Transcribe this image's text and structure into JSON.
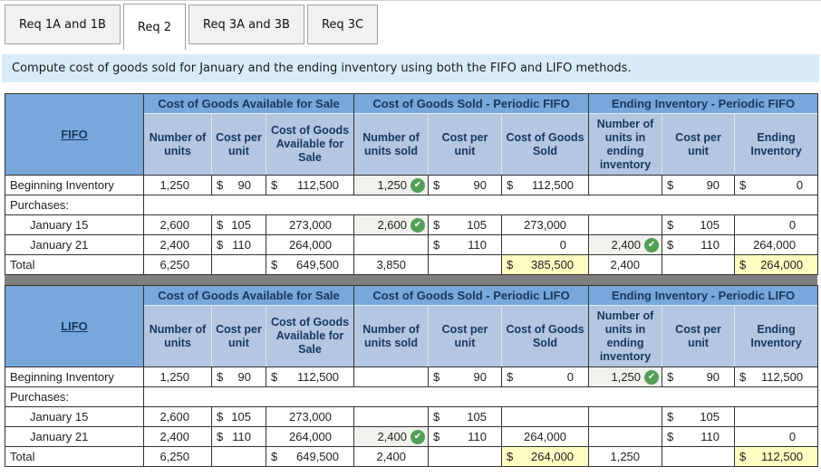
{
  "tabs": [
    {
      "label": "Req 1A and 1B",
      "active": false
    },
    {
      "label": "Req 2",
      "active": true
    },
    {
      "label": "Req 3A and 3B",
      "active": false
    },
    {
      "label": "Req 3C",
      "active": false
    }
  ],
  "banner": "Compute cost of goods sold for January and the ending inventory using both the FIFO and LIFO methods.",
  "check_icon": "✔",
  "colors": {
    "header_blue": "#78A7DB",
    "subheader_blue": "#B3C6E2",
    "banner_blue": "#D8EBF8",
    "highlight_yellow": "#FFFFC2",
    "check_green": "#549E57",
    "header_text_navy": "#17375E"
  },
  "tables": [
    {
      "method": "FIFO",
      "group_headers": [
        "Cost of Goods Available for Sale",
        "Cost of Goods Sold - Periodic FIFO",
        "Ending Inventory - Periodic FIFO"
      ],
      "sub_headers": [
        "Number of units",
        "Cost per unit",
        "Cost of Goods Available for Sale",
        "Number of units sold",
        "Cost per unit",
        "Cost of Goods Sold",
        "Number of units in ending inventory",
        "Cost per unit",
        "Ending Inventory"
      ],
      "rows": [
        {
          "label": "Beginning Inventory",
          "type": "data",
          "indent": false,
          "cells": [
            {
              "v": "1,250"
            },
            {
              "d": "$",
              "v": "90"
            },
            {
              "d": "$",
              "v": "112,500"
            },
            {
              "v": "1,250",
              "chk": true,
              "fill": true
            },
            {
              "d": "$",
              "v": "90"
            },
            {
              "d": "$",
              "v": "112,500"
            },
            {},
            {
              "d": "$",
              "v": "90"
            },
            {
              "d": "$",
              "v": "0"
            }
          ]
        },
        {
          "label": "Purchases:",
          "type": "section"
        },
        {
          "label": "January 15",
          "type": "data",
          "indent": true,
          "cells": [
            {
              "v": "2,600"
            },
            {
              "d": "$",
              "v": "105"
            },
            {
              "v": "273,000"
            },
            {
              "v": "2,600",
              "chk": true,
              "fill": true
            },
            {
              "d": "$",
              "v": "105"
            },
            {
              "v": "273,000"
            },
            {},
            {
              "d": "$",
              "v": "105"
            },
            {
              "v": "0"
            }
          ]
        },
        {
          "label": "January 21",
          "type": "data",
          "indent": true,
          "cells": [
            {
              "v": "2,400"
            },
            {
              "d": "$",
              "v": "110"
            },
            {
              "v": "264,000"
            },
            {},
            {
              "d": "$",
              "v": "110"
            },
            {
              "v": "0"
            },
            {
              "v": "2,400",
              "chk": true,
              "fill": true
            },
            {
              "d": "$",
              "v": "110"
            },
            {
              "v": "264,000"
            }
          ]
        },
        {
          "label": "Total",
          "type": "total",
          "indent": false,
          "cells": [
            {
              "v": "6,250"
            },
            {},
            {
              "d": "$",
              "v": "649,500"
            },
            {
              "v": "3,850"
            },
            {},
            {
              "d": "$",
              "v": "385,500",
              "hl": true
            },
            {
              "v": "2,400"
            },
            {},
            {
              "d": "$",
              "v": "264,000",
              "hl": true
            }
          ]
        }
      ]
    },
    {
      "method": "LIFO",
      "group_headers": [
        "Cost of Goods Available for Sale",
        "Cost of Goods Sold - Periodic LIFO",
        "Ending Inventory - Periodic LIFO"
      ],
      "sub_headers": [
        "Number of units",
        "Cost per unit",
        "Cost of Goods Available for Sale",
        "Number of units sold",
        "Cost per unit",
        "Cost of Goods Sold",
        "Number of units in ending inventory",
        "Cost per unit",
        "Ending Inventory"
      ],
      "rows": [
        {
          "label": "Beginning Inventory",
          "type": "data",
          "indent": false,
          "cells": [
            {
              "v": "1,250"
            },
            {
              "d": "$",
              "v": "90"
            },
            {
              "d": "$",
              "v": "112,500"
            },
            {},
            {
              "d": "$",
              "v": "90"
            },
            {
              "d": "$",
              "v": "0"
            },
            {
              "v": "1,250",
              "chk": true,
              "fill": true
            },
            {
              "d": "$",
              "v": "90"
            },
            {
              "d": "$",
              "v": "112,500"
            }
          ]
        },
        {
          "label": "Purchases:",
          "type": "section"
        },
        {
          "label": "January 15",
          "type": "data",
          "indent": true,
          "cells": [
            {
              "v": "2,600"
            },
            {
              "d": "$",
              "v": "105"
            },
            {
              "v": "273,000"
            },
            {},
            {
              "d": "$",
              "v": "105"
            },
            {},
            {},
            {
              "d": "$",
              "v": "105"
            },
            {}
          ]
        },
        {
          "label": "January 21",
          "type": "data",
          "indent": true,
          "cells": [
            {
              "v": "2,400"
            },
            {
              "d": "$",
              "v": "110"
            },
            {
              "v": "264,000"
            },
            {
              "v": "2,400",
              "chk": true,
              "fill": true
            },
            {
              "d": "$",
              "v": "110"
            },
            {
              "v": "264,000"
            },
            {},
            {
              "d": "$",
              "v": "110"
            },
            {
              "v": "0"
            }
          ]
        },
        {
          "label": "Total",
          "type": "total",
          "indent": false,
          "cells": [
            {
              "v": "6,250"
            },
            {},
            {
              "d": "$",
              "v": "649,500"
            },
            {
              "v": "2,400"
            },
            {},
            {
              "d": "$",
              "v": "264,000",
              "hl": true
            },
            {
              "v": "1,250"
            },
            {},
            {
              "d": "$",
              "v": "112,500",
              "hl": true
            }
          ]
        }
      ]
    }
  ]
}
